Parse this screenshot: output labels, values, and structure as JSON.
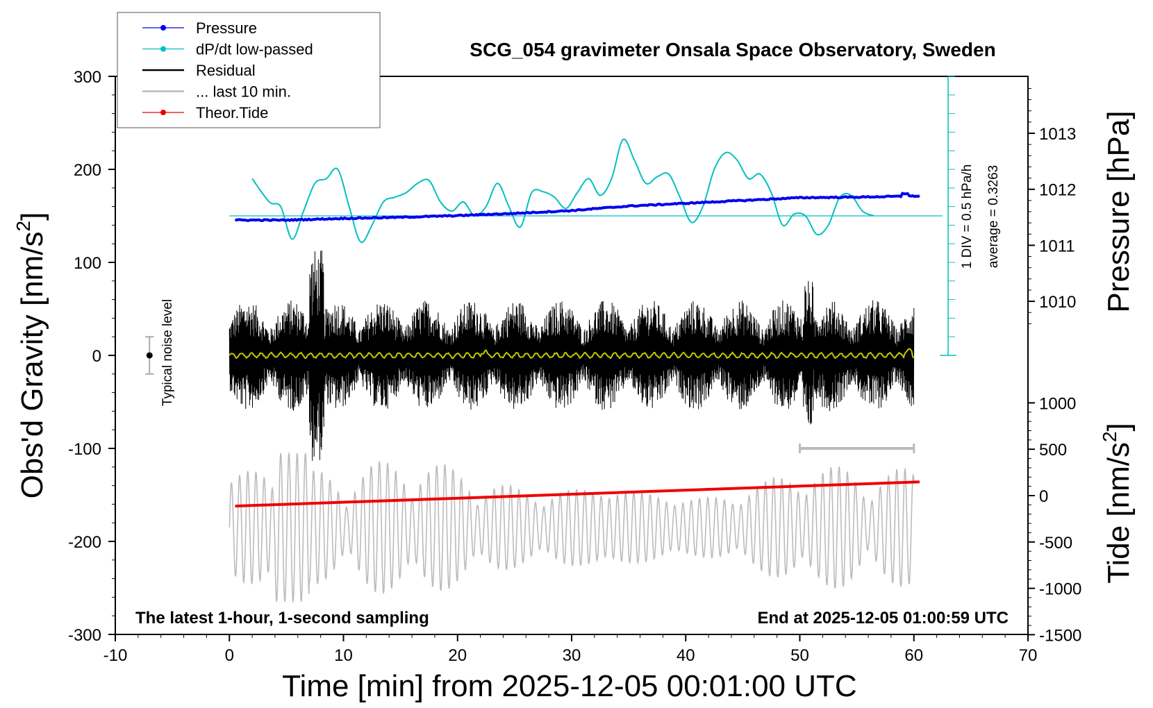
{
  "chart_data": {
    "type": "line",
    "title": "SCG_054 gravimeter Onsala Space Observatory, Sweden",
    "xlabel": "Time [min] from 2025-12-05 00:01:00 UTC",
    "ylabel_left": "Obs'd Gravity [nm/s²]",
    "ylabel_left_main": "Obs'd Gravity [nm/s",
    "ylabel_left_sup": "2",
    "ylabel_left_close": "]",
    "ylabel_right_top": "Pressure [hPa]",
    "ylabel_right_bottom": "Tide [nm/s²]",
    "ylabel_right_bottom_main": "Tide [nm/s",
    "ylabel_right_bottom_sup": "2",
    "ylabel_right_bottom_close": "]",
    "xlim": [
      -10,
      70
    ],
    "ylim_left": [
      -300,
      300
    ],
    "x_ticks": [
      "-10",
      "0",
      "10",
      "20",
      "30",
      "40",
      "50",
      "60",
      "70"
    ],
    "y_ticks_left": [
      "300",
      "200",
      "100",
      "0",
      "-100",
      "-200",
      "-300"
    ],
    "y_ticks_pressure": [
      "1013",
      "1012",
      "1011",
      "1010"
    ],
    "y_ticks_tide": [
      "1000",
      "500",
      "0",
      "-500",
      "-1000",
      "-1500"
    ],
    "legend": [
      {
        "label": "Pressure",
        "color": "#0000ee",
        "marker": true
      },
      {
        "label": "dP/dt low-passed",
        "color": "#00c0c0",
        "marker": true
      },
      {
        "label": "Residual",
        "color": "#000000",
        "marker": false
      },
      {
        "label": "... last 10 min.",
        "color": "#bbbbbb",
        "marker": false
      },
      {
        "label": "Theor.Tide",
        "color": "#ee0000",
        "marker": true
      }
    ],
    "annotations": {
      "noise_label": "Typical noise level",
      "div_label": "1 DIV = 0.5 hPa/h",
      "average_label": "average = 0.3263",
      "bottom_left": "The latest 1-hour, 1-second sampling",
      "bottom_right": "End at 2025-12-05 01:00:59 UTC"
    },
    "series": [
      {
        "name": "Pressure",
        "color": "#0000ee",
        "unit": "hPa",
        "x": [
          0.5,
          5,
          10,
          15,
          20,
          25,
          30,
          35,
          40,
          45,
          50,
          55,
          60.5
        ],
        "values": [
          1011.45,
          1011.45,
          1011.48,
          1011.5,
          1011.53,
          1011.57,
          1011.62,
          1011.7,
          1011.75,
          1011.8,
          1011.85,
          1011.86,
          1011.88
        ]
      },
      {
        "name": "dP/dt low-passed",
        "color": "#00c0c0",
        "unit": "nm/s² (scaled)",
        "x": [
          2,
          3.5,
          4.5,
          5.5,
          6.5,
          7.5,
          8.5,
          9.5,
          10.5,
          11.5,
          12.5,
          13.5,
          14.5,
          15.5,
          16.5,
          17.5,
          18.5,
          19.5,
          20.5,
          21.5,
          22.5,
          23.5,
          24.5,
          25.5,
          26.5,
          27.5,
          28.5,
          29.5,
          30.5,
          31.5,
          32.5,
          33.5,
          34.5,
          35.5,
          36.5,
          37.5,
          38.5,
          39.5,
          40.5,
          41.5,
          42.5,
          43.5,
          44.5,
          45.5,
          46.5,
          47.5,
          48.5,
          49.5,
          50.5,
          51.5,
          52.5,
          53.5,
          54.5,
          55.5,
          56.5
        ],
        "values": [
          190,
          165,
          160,
          125,
          155,
          185,
          190,
          200,
          160,
          122,
          140,
          165,
          170,
          175,
          185,
          188,
          165,
          155,
          165,
          150,
          160,
          185,
          160,
          138,
          175,
          176,
          170,
          158,
          175,
          190,
          172,
          190,
          232,
          210,
          185,
          192,
          195,
          170,
          143,
          160,
          200,
          218,
          210,
          190,
          195,
          175,
          140,
          152,
          150,
          130,
          140,
          170,
          172,
          155,
          150
        ]
      },
      {
        "name": "Residual",
        "color": "#000000",
        "unit": "nm/s²",
        "x_range": [
          0,
          60
        ],
        "amplitude": 60,
        "peak_range": [
          -120,
          118
        ]
      },
      {
        "name": "... last 10 min.",
        "color": "#bbbbbb",
        "unit": "nm/s²",
        "x_range": [
          0,
          60
        ],
        "center": -185,
        "amplitude": 70,
        "peak_range": [
          -268,
          -100
        ]
      },
      {
        "name": "Theor.Tide",
        "color": "#ee0000",
        "unit": "nm/s²",
        "x": [
          0.5,
          60.5
        ],
        "values": [
          -162,
          -136
        ]
      },
      {
        "name": "Residual low-passed",
        "color": "#c8c800",
        "unit": "nm/s²",
        "x_range": [
          0,
          60
        ],
        "value": 0
      }
    ],
    "noise_bar": {
      "x": -7,
      "center": 0,
      "half_range": 20
    },
    "scale_bar": {
      "x_start": 50,
      "x_end": 60,
      "y": -100
    }
  }
}
